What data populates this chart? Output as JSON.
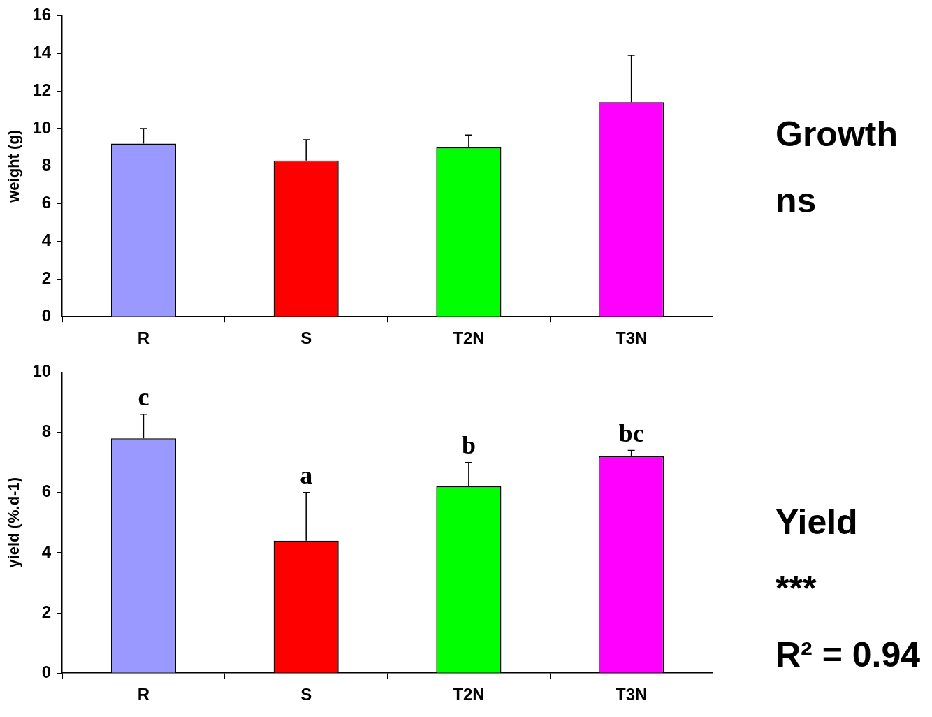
{
  "chart_data": [
    {
      "type": "bar",
      "ylabel": "weight (g)",
      "categories": [
        "R",
        "S",
        "T2N",
        "T3N"
      ],
      "values": [
        9.2,
        8.3,
        9.0,
        11.4
      ],
      "colors": [
        "#9999ff",
        "#ff0000",
        "#00ff00",
        "#ff00ff"
      ],
      "errors": [
        0.8,
        1.1,
        0.65,
        2.5
      ],
      "ylim": [
        0,
        16
      ],
      "yticks": [
        0,
        2,
        4,
        6,
        8,
        10,
        12,
        14,
        16
      ],
      "grid": false,
      "legend": false,
      "annotations": [
        "Growth",
        "ns"
      ]
    },
    {
      "type": "bar",
      "ylabel": "yield (%.d-1)",
      "categories": [
        "R",
        "S",
        "T2N",
        "T3N"
      ],
      "values": [
        7.8,
        4.4,
        6.2,
        7.2
      ],
      "colors": [
        "#9999ff",
        "#ff0000",
        "#00ff00",
        "#ff00ff"
      ],
      "errors": [
        0.8,
        1.6,
        0.8,
        0.2
      ],
      "ylim": [
        0,
        10
      ],
      "yticks": [
        0,
        2,
        4,
        6,
        8,
        10
      ],
      "grid": false,
      "legend": false,
      "annotations": [
        {
          "text": "c",
          "x": "R",
          "y": 8.6
        },
        {
          "text": "a",
          "x": "S",
          "y": 6.0
        },
        {
          "text": "b",
          "x": "T2N",
          "y": 7.0
        },
        {
          "text": "bc",
          "x": "T3N",
          "y": 7.4
        },
        "Yield",
        "***",
        "R² = 0.94"
      ]
    }
  ]
}
